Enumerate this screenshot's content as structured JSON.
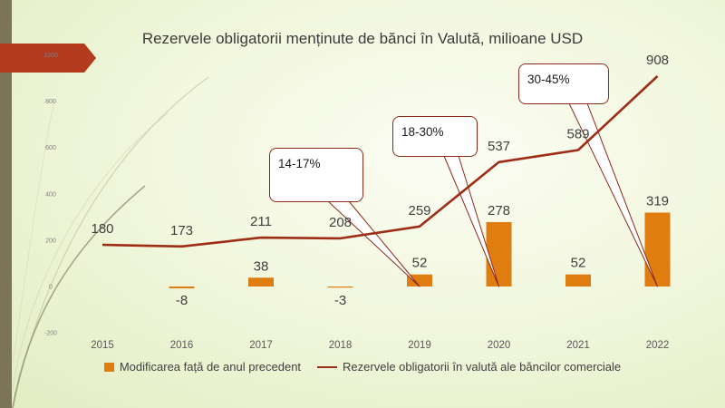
{
  "chart_data": {
    "type": "bar+line",
    "title": "Rezervele obligatorii menținute de bănci în Valută, milioane USD",
    "categories": [
      "2015",
      "2016",
      "2017",
      "2018",
      "2019",
      "2020",
      "2021",
      "2022"
    ],
    "y_ticks": [
      "-200",
      "0",
      "200",
      "400",
      "600",
      "800",
      "1000"
    ],
    "ylim": [
      -200,
      1000
    ],
    "series": [
      {
        "name": "Modificarea față de anul precedent",
        "type": "bar",
        "color": "#e07d10",
        "values": [
          null,
          -8,
          38,
          -3,
          52,
          278,
          52,
          319
        ],
        "labels": [
          "",
          "-8",
          "38",
          "-3",
          "52",
          "278",
          "52",
          "319"
        ]
      },
      {
        "name": "Rezervele obligatorii în valută ale băncilor comerciale",
        "type": "line",
        "color": "#9e2d16",
        "values": [
          180,
          173,
          211,
          208,
          259,
          537,
          589,
          908
        ],
        "labels": [
          "180",
          "173",
          "211",
          "208",
          "259",
          "537",
          "589",
          "908"
        ]
      }
    ],
    "callouts": [
      {
        "text": "14-17%",
        "target_category": "2019",
        "target_value": 0
      },
      {
        "text": "18-30%",
        "target_category": "2020",
        "target_value": 0
      },
      {
        "text": "30-45%",
        "target_category": "2022",
        "target_value": 0
      }
    ],
    "legend": [
      {
        "label": "Modificarea față de anul precedent",
        "type": "bar",
        "color": "#e07d10"
      },
      {
        "label": "Rezervele obligatorii în valută ale băncilor comerciale",
        "type": "line",
        "color": "#9e2d16"
      }
    ],
    "legend_position": "bottom"
  }
}
